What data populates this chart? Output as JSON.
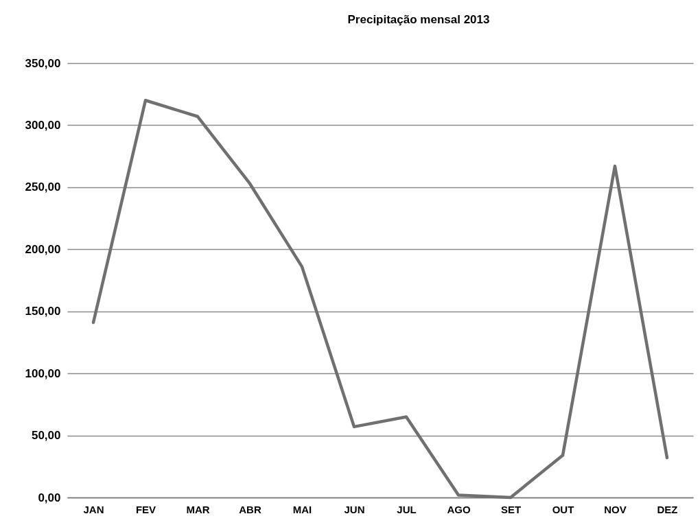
{
  "chart_data": {
    "type": "line",
    "title": "Precipitação mensal 2013",
    "categories": [
      "JAN",
      "FEV",
      "MAR",
      "ABR",
      "MAI",
      "JUN",
      "JUL",
      "AGO",
      "SET",
      "OUT",
      "NOV",
      "DEZ"
    ],
    "series": [
      {
        "color": "#707070",
        "values": [
          141,
          320,
          307,
          253,
          186,
          57,
          65,
          2,
          0,
          34,
          267,
          32
        ]
      }
    ],
    "ylim": [
      0,
      350
    ],
    "yticks": [
      {
        "value": 0,
        "label": "0,00"
      },
      {
        "value": 50,
        "label": "50,00"
      },
      {
        "value": 100,
        "label": "100,00"
      },
      {
        "value": 150,
        "label": "150,00"
      },
      {
        "value": 200,
        "label": "200,00"
      },
      {
        "value": 250,
        "label": "250,00"
      },
      {
        "value": 300,
        "label": "300,00"
      },
      {
        "value": 350,
        "label": "350,00"
      }
    ],
    "grid": "y",
    "marker": "none",
    "line_style": "solid"
  }
}
